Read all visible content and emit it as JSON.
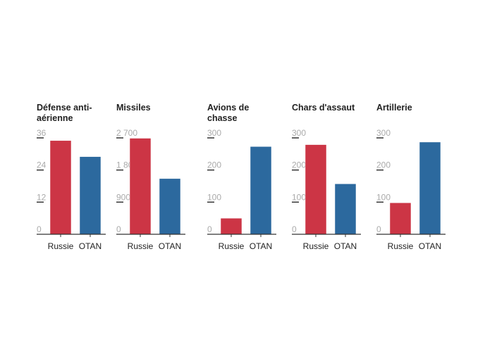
{
  "chart_data": [
    {
      "type": "bar",
      "title": "Défense anti-aérienne",
      "categories": [
        "Russie",
        "OTAN"
      ],
      "values": [
        35,
        29
      ],
      "ylim": [
        0,
        36
      ],
      "yticks": [
        "0",
        "12",
        "24",
        "36"
      ],
      "tickvals": [
        0,
        12,
        24,
        36
      ]
    },
    {
      "type": "bar",
      "title": "Missiles",
      "categories": [
        "Russie",
        "OTAN"
      ],
      "values": [
        2690,
        1560
      ],
      "ylim": [
        0,
        2700
      ],
      "yticks": [
        "0",
        "900",
        "1 800",
        "2 700"
      ],
      "tickvals": [
        0,
        900,
        1800,
        2700
      ]
    },
    {
      "type": "bar",
      "title": "Avions de chasse",
      "categories": [
        "Russie",
        "OTAN"
      ],
      "values": [
        50,
        273
      ],
      "ylim": [
        0,
        300
      ],
      "yticks": [
        "0",
        "100",
        "200",
        "300"
      ],
      "tickvals": [
        0,
        100,
        200,
        300
      ]
    },
    {
      "type": "bar",
      "title": "Chars d'assaut",
      "categories": [
        "Russie",
        "OTAN"
      ],
      "values": [
        279,
        157
      ],
      "ylim": [
        0,
        300
      ],
      "yticks": [
        "0",
        "100",
        "200",
        "300"
      ],
      "tickvals": [
        0,
        100,
        200,
        300
      ]
    },
    {
      "type": "bar",
      "title": "Artillerie",
      "categories": [
        "Russie",
        "OTAN"
      ],
      "values": [
        98,
        287
      ],
      "ylim": [
        0,
        300
      ],
      "yticks": [
        "0",
        "100",
        "200",
        "300"
      ],
      "tickvals": [
        0,
        100,
        200,
        300
      ]
    }
  ],
  "colors": {
    "Russie": "#cc3545",
    "OTAN": "#2c699e"
  }
}
